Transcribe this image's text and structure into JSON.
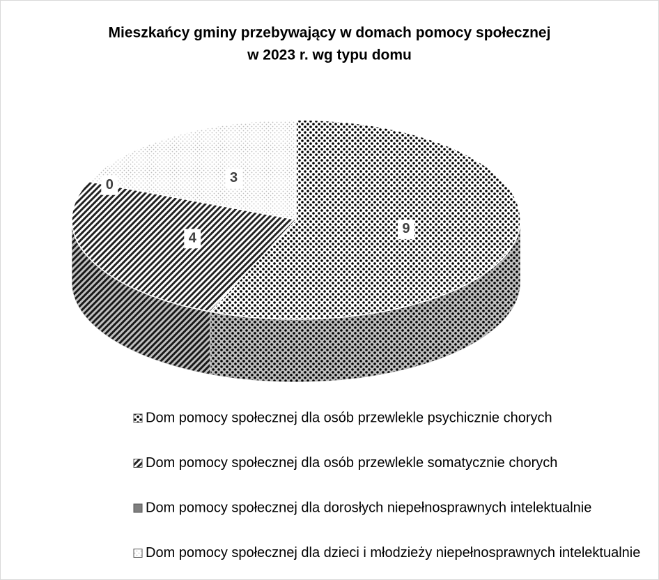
{
  "chart_data": {
    "type": "pie",
    "title": [
      "Mieszkańcy gminy przebywający w domach pomocy społecznej",
      "w 2023 r. wg typu domu"
    ],
    "categories": [
      "Dom pomocy społecznej dla osób przewlekle psychicznie chorych",
      "Dom pomocy społecznej dla osób przewlekle somatycznie chorych",
      "Dom pomocy społecznej dla dorosłych niepełnosprawnych intelektualnie",
      "Dom pomocy społecznej dla dzieci i młodzieży niepełnosprawnych intelektualnie"
    ],
    "values": [
      9,
      4,
      0,
      3
    ],
    "colors": [
      "#000000",
      "#222222",
      "#7f7f7f",
      "#bfbfbf"
    ]
  }
}
